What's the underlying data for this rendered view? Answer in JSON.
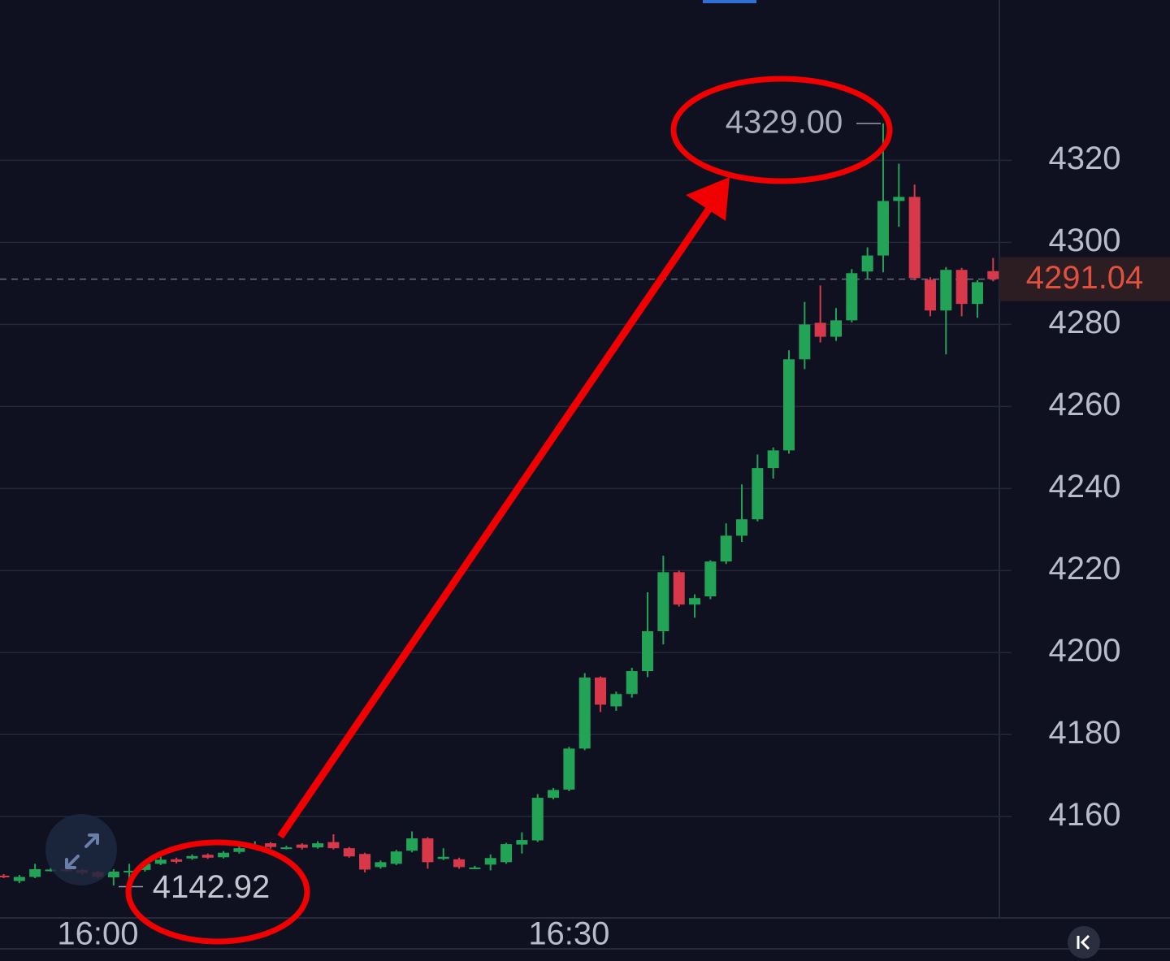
{
  "chart_data": {
    "type": "candlestick",
    "categories": [
      null,
      null,
      null,
      null,
      null,
      null,
      "16:00",
      null,
      null,
      null,
      null,
      null,
      null,
      null,
      null,
      null,
      null,
      null,
      null,
      null,
      null,
      null,
      null,
      null,
      null,
      null,
      null,
      null,
      null,
      null,
      null,
      null,
      null,
      null,
      null,
      null,
      "16:30",
      null,
      null,
      null,
      null,
      null,
      null,
      null,
      null,
      null,
      null,
      null,
      null,
      null,
      null,
      null,
      null,
      null,
      null,
      null,
      null,
      null,
      null,
      null,
      null,
      null,
      null,
      null
    ],
    "open": [
      4145.6,
      4144.3,
      4145.3,
      4147.0,
      4147.1,
      4147.0,
      4146.5,
      4145.2,
      4146.5,
      4147.0,
      4148.5,
      4149.6,
      4149.8,
      4150.7,
      4150.1,
      4151.4,
      4152.4,
      4153.5,
      4152.4,
      4153.2,
      4152.5,
      4153.8,
      4152.3,
      4150.9,
      4147.7,
      4148.5,
      4151.7,
      4154.7,
      4149.7,
      4149.6,
      4147.5,
      4148.3,
      4148.9,
      4153.2,
      4154.2,
      4164.6,
      4166.6,
      4176.6,
      4193.9,
      4186.9,
      4189.9,
      4195.5,
      4205.2,
      4219.6,
      4211.7,
      4213.7,
      4222.2,
      4228.5,
      4232.5,
      4245.0,
      4249.3,
      4271.5,
      4280.4,
      4277.0,
      4281.0,
      4292.9,
      4296.8,
      4310.1,
      4311.1,
      4290.9,
      4283.4,
      4293.3,
      4285.0,
      4293.0
    ],
    "high": [
      4146.0,
      4145.8,
      4148.5,
      4147.5,
      4147.4,
      4147.3,
      4146.8,
      4147.2,
      4148.5,
      4149.0,
      4150.2,
      4150.0,
      4150.8,
      4151.0,
      4151.6,
      4153.5,
      4154.0,
      4153.8,
      4152.9,
      4153.5,
      4154.0,
      4155.7,
      4152.6,
      4151.2,
      4149.3,
      4151.9,
      4156.4,
      4155.0,
      4152.3,
      4150.0,
      4148.0,
      4150.8,
      4153.6,
      4156.2,
      4165.5,
      4167.0,
      4177.0,
      4195.0,
      4194.2,
      4190.5,
      4196.3,
      4214.7,
      4223.6,
      4220.0,
      4214.2,
      4222.5,
      4231.5,
      4241.0,
      4248.3,
      4250.0,
      4273.7,
      4285.5,
      4289.5,
      4284.0,
      4293.5,
      4298.8,
      4329.0,
      4319.2,
      4314.1,
      4291.5,
      4294.0,
      4293.8,
      4290.8,
      4296.2
    ],
    "low": [
      4145.0,
      4143.8,
      4145.0,
      4146.6,
      4146.6,
      4145.9,
      4144.9,
      4143.2,
      4142.92,
      4146.6,
      4148.2,
      4148.6,
      4149.5,
      4149.7,
      4149.8,
      4151.0,
      4152.1,
      4152.2,
      4152.0,
      4152.0,
      4152.2,
      4152.0,
      4150.0,
      4146.4,
      4147.3,
      4148.2,
      4151.3,
      4147.3,
      4149.4,
      4147.3,
      4147.2,
      4146.9,
      4148.5,
      4151.0,
      4153.8,
      4164.2,
      4166.2,
      4176.2,
      4185.5,
      4185.8,
      4189.0,
      4194.0,
      4202.0,
      4211.2,
      4208.5,
      4213.0,
      4221.6,
      4227.0,
      4232.0,
      4242.4,
      4248.5,
      4269.1,
      4275.6,
      4276.0,
      4280.5,
      4291.0,
      4292.7,
      4303.8,
      4290.8,
      4282.0,
      4272.7,
      4282.0,
      4281.6,
      4290.5
    ],
    "close": [
      4145.4,
      4145.3,
      4147.2,
      4147.1,
      4147.0,
      4146.3,
      4145.3,
      4146.6,
      4146.8,
      4148.5,
      4149.5,
      4149.0,
      4150.4,
      4150.0,
      4151.2,
      4152.3,
      4152.6,
      4152.6,
      4152.5,
      4152.4,
      4153.5,
      4152.3,
      4150.3,
      4147.1,
      4148.9,
      4151.5,
      4154.7,
      4148.9,
      4150.2,
      4147.7,
      4147.6,
      4149.9,
      4153.3,
      4154.3,
      4164.6,
      4166.5,
      4176.6,
      4193.9,
      4187.3,
      4189.9,
      4195.5,
      4205.2,
      4219.6,
      4211.7,
      4213.3,
      4222.2,
      4228.5,
      4232.5,
      4245.0,
      4249.3,
      4271.5,
      4280.0,
      4277.0,
      4281.0,
      4292.5,
      4296.8,
      4310.1,
      4311.1,
      4291.3,
      4283.4,
      4293.3,
      4285.0,
      4290.3,
      4291.04
    ],
    "up_color": "#22a356",
    "down_color": "#d8394a",
    "ylim": [
      4135.3,
      4359.1
    ],
    "yticks": [
      4160,
      4180,
      4200,
      4220,
      4240,
      4260,
      4280,
      4300,
      4320
    ],
    "grid": true,
    "last_price": 4291.04,
    "last_price_color": "#e0503e",
    "annotations": {
      "high": {
        "value": 4329.0,
        "label": "4329.00"
      },
      "low": 4142.92
    }
  }
}
